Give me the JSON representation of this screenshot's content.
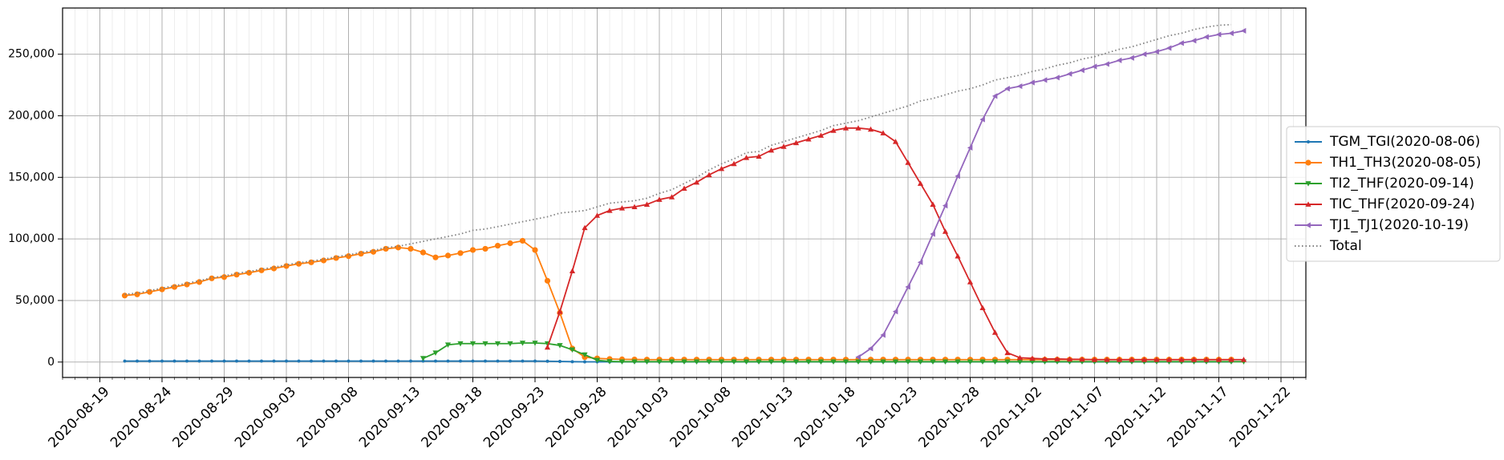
{
  "chart_data": {
    "type": "line",
    "title": "",
    "xlabel": "",
    "ylabel": "",
    "x_axis": {
      "type": "date",
      "range": [
        "2020-08-16",
        "2020-11-24"
      ],
      "tick_labels": [
        "2020-08-19",
        "2020-08-24",
        "2020-08-29",
        "2020-09-03",
        "2020-09-08",
        "2020-09-13",
        "2020-09-18",
        "2020-09-23",
        "2020-09-28",
        "2020-10-03",
        "2020-10-08",
        "2020-10-13",
        "2020-10-18",
        "2020-10-23",
        "2020-10-28",
        "2020-11-02",
        "2020-11-07",
        "2020-11-12",
        "2020-11-17",
        "2020-11-22"
      ],
      "tick_rotation": 45,
      "minor_grid": "daily"
    },
    "y_axis": {
      "range": [
        -12500,
        287500
      ],
      "ticks": [
        0,
        50000,
        100000,
        150000,
        200000,
        250000
      ],
      "tick_labels": [
        "0",
        "50,000",
        "100,000",
        "150,000",
        "200,000",
        "250,000"
      ]
    },
    "grid": true,
    "legend": {
      "position": "right"
    },
    "series": [
      {
        "name": "TGM_TGI(2020-08-06)",
        "color": "#1f77b4",
        "marker": "point",
        "style": "solid",
        "start": "2020-08-21",
        "values": [
          800,
          800,
          800,
          800,
          800,
          800,
          800,
          800,
          800,
          800,
          800,
          800,
          800,
          800,
          800,
          800,
          800,
          800,
          800,
          800,
          800,
          800,
          800,
          800,
          800,
          800,
          800,
          800,
          800,
          800,
          800,
          800,
          800,
          800,
          700,
          500,
          300,
          200,
          200,
          200,
          200,
          200,
          200,
          200,
          200,
          200,
          200,
          200,
          200,
          200,
          200,
          200,
          200,
          200,
          200,
          200,
          200,
          200,
          200,
          200,
          200,
          200,
          200,
          200,
          200,
          200,
          200,
          200,
          200,
          200,
          200,
          200,
          200,
          200,
          200,
          200,
          200,
          200,
          200,
          200,
          200,
          200,
          200,
          200,
          200,
          200,
          200,
          200,
          200,
          200
        ]
      },
      {
        "name": "TH1_TH3(2020-08-05)",
        "color": "#ff7f0e",
        "marker": "circle",
        "style": "solid",
        "start": "2020-08-21",
        "values": [
          54000,
          55000,
          57000,
          59000,
          61000,
          63000,
          65000,
          68000,
          69000,
          71000,
          72500,
          74500,
          76000,
          78000,
          79800,
          81000,
          82500,
          84500,
          86000,
          88000,
          89500,
          92000,
          93000,
          92000,
          89000,
          85000,
          86500,
          88500,
          91000,
          92000,
          94500,
          96500,
          98500,
          91000,
          66000,
          40000,
          11000,
          4000,
          3000,
          2500,
          2200,
          2100,
          2000,
          2000,
          2000,
          2000,
          2000,
          2000,
          2000,
          2000,
          2000,
          2000,
          2000,
          2000,
          2000,
          2000,
          2000,
          2000,
          2000,
          2000,
          2000,
          2000,
          2000,
          2000,
          2000,
          2000,
          2000,
          2000,
          2000,
          2000,
          2000,
          2000,
          2000,
          2000,
          2000,
          2000,
          2000,
          2000,
          2000,
          2000,
          2000,
          2000,
          2000,
          2000,
          2000,
          2000,
          2000,
          2000,
          2000,
          2000
        ]
      },
      {
        "name": "TI2_THF(2020-09-14)",
        "color": "#2ca02c",
        "marker": "triangle-down",
        "style": "solid",
        "start": "2020-09-14",
        "values": [
          3000,
          7500,
          14000,
          15000,
          15000,
          15000,
          15000,
          15000,
          15500,
          15500,
          15000,
          13500,
          10000,
          6000,
          1500,
          500,
          300,
          300,
          300,
          300,
          300,
          300,
          300,
          300,
          300,
          300,
          300,
          300,
          300,
          300,
          300,
          300,
          300,
          300,
          300,
          300,
          300,
          300,
          300,
          300,
          300,
          300,
          300,
          300,
          300,
          300,
          300,
          300,
          300,
          300,
          300,
          300,
          300,
          300,
          300,
          300,
          300,
          300,
          300,
          300,
          300,
          300,
          300,
          300,
          300,
          300,
          300
        ]
      },
      {
        "name": "TIC_THF(2020-09-24)",
        "color": "#d62728",
        "marker": "triangle-up",
        "style": "solid",
        "start": "2020-09-24",
        "values": [
          12000,
          41000,
          74000,
          109000,
          119000,
          123000,
          125000,
          126000,
          128000,
          132000,
          134000,
          141000,
          146000,
          152000,
          157000,
          161000,
          166000,
          167000,
          172000,
          175000,
          178000,
          181000,
          184000,
          188000,
          190000,
          190000,
          189000,
          186000,
          179000,
          162000,
          145000,
          128000,
          106000,
          86000,
          65000,
          44000,
          24000,
          7500,
          3500,
          3000,
          2500,
          2500,
          2300,
          2200,
          2000,
          2000,
          2000,
          2000,
          2000,
          2000,
          2000,
          2000,
          2000,
          2000,
          2000,
          2000,
          2000
        ]
      },
      {
        "name": "TJ1_TJ1(2020-10-19)",
        "color": "#9467bd",
        "marker": "triangle-left",
        "style": "solid",
        "start": "2020-10-19",
        "values": [
          4000,
          11000,
          22000,
          41000,
          61000,
          81000,
          104000,
          127000,
          151000,
          174000,
          197000,
          216000,
          222000,
          224000,
          227000,
          229000,
          231000,
          234000,
          237000,
          240000,
          242000,
          245000,
          247000,
          250000,
          252000,
          255000,
          259000,
          261000,
          264000,
          266000,
          267000,
          269000
        ]
      },
      {
        "name": "Total",
        "color": "#808080",
        "marker": "none",
        "style": "dotted",
        "start": "2020-08-21",
        "values": [
          55000,
          56000,
          58000,
          60000,
          62000,
          64000,
          66000,
          68500,
          70000,
          72000,
          73500,
          75500,
          77000,
          79000,
          80600,
          82000,
          83500,
          85500,
          87000,
          89000,
          90500,
          93000,
          94000,
          96000,
          98000,
          100000,
          102000,
          104000,
          107000,
          108000,
          110000,
          112000,
          114000,
          116000,
          118000,
          121000,
          122000,
          123000,
          126000,
          129000,
          130000,
          131000,
          133000,
          137000,
          140000,
          145000,
          150000,
          156000,
          161000,
          165000,
          170000,
          171000,
          176000,
          179000,
          182000,
          185000,
          188000,
          192000,
          194000,
          196000,
          199000,
          202000,
          205000,
          208000,
          212000,
          214000,
          217000,
          220000,
          222000,
          225000,
          229000,
          231000,
          233000,
          236000,
          238000,
          241000,
          243000,
          246000,
          248000,
          251000,
          254000,
          256000,
          259000,
          262000,
          265000,
          267000,
          270000,
          272000,
          273500,
          274000
        ]
      }
    ]
  }
}
